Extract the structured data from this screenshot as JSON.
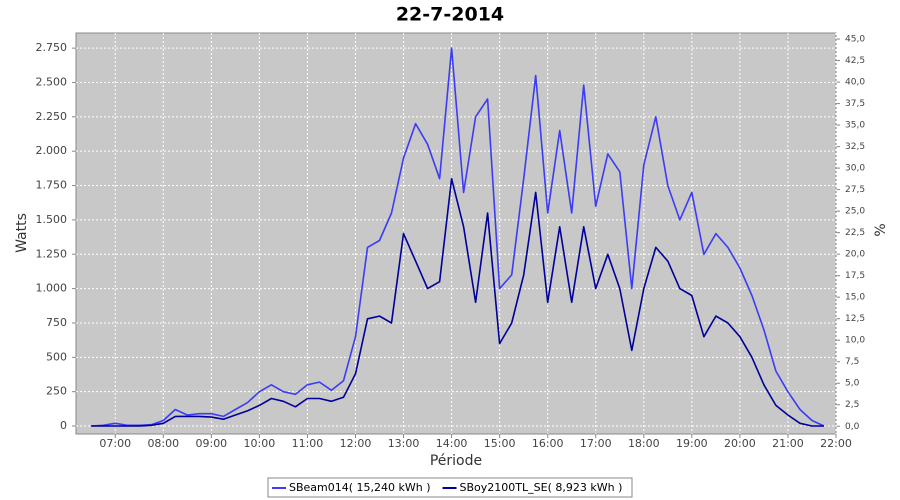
{
  "chart_data": {
    "type": "line",
    "title": "22-7-2014",
    "x_label": "Période",
    "y_label": "Watts",
    "y2_label": "%",
    "x": [
      "06:30",
      "06:45",
      "07:00",
      "07:15",
      "07:30",
      "07:45",
      "08:00",
      "08:15",
      "08:30",
      "08:45",
      "09:00",
      "09:15",
      "09:30",
      "09:45",
      "10:00",
      "10:15",
      "10:30",
      "10:45",
      "11:00",
      "11:15",
      "11:30",
      "11:45",
      "12:00",
      "12:15",
      "12:30",
      "12:45",
      "13:00",
      "13:15",
      "13:30",
      "13:45",
      "14:00",
      "14:15",
      "14:30",
      "14:45",
      "15:00",
      "15:15",
      "15:30",
      "15:45",
      "16:00",
      "16:15",
      "16:30",
      "16:45",
      "17:00",
      "17:15",
      "17:30",
      "17:45",
      "18:00",
      "18:15",
      "18:30",
      "18:45",
      "19:00",
      "19:15",
      "19:30",
      "19:45",
      "20:00",
      "20:15",
      "20:30",
      "20:45",
      "21:00",
      "21:15",
      "21:30",
      "21:45"
    ],
    "series": [
      {
        "name": "SBeam014( 15,240 kWh )",
        "color": "#3c3cf5",
        "values": [
          0,
          5,
          20,
          5,
          5,
          10,
          40,
          120,
          80,
          90,
          90,
          70,
          120,
          170,
          250,
          300,
          250,
          230,
          300,
          320,
          260,
          330,
          650,
          1300,
          1350,
          1550,
          1950,
          2200,
          2050,
          1800,
          2750,
          1700,
          2250,
          2380,
          1000,
          1100,
          1800,
          2550,
          1550,
          2150,
          1550,
          2480,
          1600,
          1980,
          1850,
          1000,
          1900,
          2250,
          1750,
          1500,
          1700,
          1250,
          1400,
          1300,
          1150,
          950,
          700,
          400,
          250,
          120,
          40,
          0
        ]
      },
      {
        "name": "SBoy2100TL_SE( 8,923 kWh )",
        "color": "#00009a",
        "values": [
          0,
          0,
          0,
          0,
          0,
          5,
          20,
          70,
          70,
          70,
          65,
          50,
          80,
          110,
          150,
          200,
          180,
          140,
          200,
          200,
          180,
          210,
          380,
          780,
          800,
          750,
          1400,
          1200,
          1000,
          1050,
          1800,
          1450,
          900,
          1550,
          600,
          750,
          1100,
          1700,
          900,
          1450,
          900,
          1450,
          1000,
          1250,
          1000,
          550,
          1000,
          1300,
          1200,
          1000,
          950,
          650,
          800,
          750,
          650,
          500,
          300,
          150,
          80,
          20,
          0,
          0
        ]
      }
    ],
    "xlim": [
      "06:11",
      "22:00"
    ],
    "xticks": [
      "07:00",
      "08:00",
      "09:00",
      "10:00",
      "11:00",
      "12:00",
      "13:00",
      "14:00",
      "15:00",
      "16:00",
      "17:00",
      "18:00",
      "19:00",
      "20:00",
      "21:00",
      "22:00"
    ],
    "ylim": [
      -58,
      2860
    ],
    "yticks": [
      0,
      250,
      500,
      750,
      {
        "value": 1000,
        "label": "1.000"
      },
      {
        "value": 1250,
        "label": "1.250"
      },
      {
        "value": 1500,
        "label": "1.500"
      },
      {
        "value": 1750,
        "label": "1.750"
      },
      {
        "value": 2000,
        "label": "2.000"
      },
      {
        "value": 2250,
        "label": "2.250"
      },
      {
        "value": 2500,
        "label": "2.500"
      },
      {
        "value": 2750,
        "label": "2.750"
      }
    ],
    "y2lim": [
      -0.9,
      45.7
    ],
    "y2ticks": [
      {
        "value": 0,
        "label": "0,0"
      },
      {
        "value": 2.5,
        "label": "2,5"
      },
      {
        "value": 5,
        "label": "5,0"
      },
      {
        "value": 7.5,
        "label": "7,5"
      },
      {
        "value": 10,
        "label": "10,0"
      },
      {
        "value": 12.5,
        "label": "12,5"
      },
      {
        "value": 15,
        "label": "15,0"
      },
      {
        "value": 17.5,
        "label": "17,5"
      },
      {
        "value": 20,
        "label": "20,0"
      },
      {
        "value": 22.5,
        "label": "22,5"
      },
      {
        "value": 25,
        "label": "25,0"
      },
      {
        "value": 27.5,
        "label": "27,5"
      },
      {
        "value": 30,
        "label": "30,0"
      },
      {
        "value": 32.5,
        "label": "32,5"
      },
      {
        "value": 35,
        "label": "35,0"
      },
      {
        "value": 37.5,
        "label": "37,5"
      },
      {
        "value": 40,
        "label": "40,0"
      },
      {
        "value": 42.5,
        "label": "42,5"
      },
      {
        "value": 45,
        "label": "45,0"
      }
    ],
    "grid": true,
    "legend": "bottom"
  }
}
